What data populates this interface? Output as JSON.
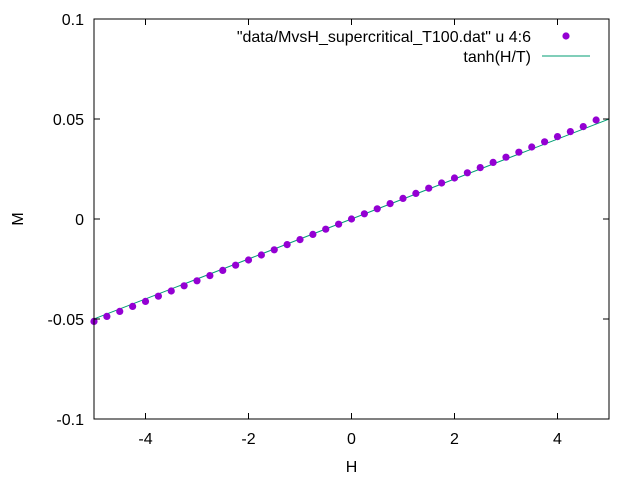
{
  "chart_data": {
    "type": "scatter",
    "title": "",
    "xlabel": "H",
    "ylabel": "M",
    "xlim": [
      -5,
      5
    ],
    "ylim": [
      -0.1,
      0.1
    ],
    "x_ticks": [
      -4,
      -2,
      0,
      2,
      4
    ],
    "x_tick_labels": [
      "-4",
      "-2",
      "0",
      "2",
      "4"
    ],
    "y_ticks": [
      -0.1,
      -0.05,
      0,
      0.05,
      0.1
    ],
    "y_tick_labels": [
      "-0.1",
      "-0.05",
      "0",
      "0.05",
      "0.1"
    ],
    "grid": false,
    "legend_position": "top-right",
    "series": [
      {
        "name": "\"data/MvsH_supercritical_T100.dat\" u 4:6",
        "kind": "points",
        "color": "#9400d3",
        "x": [
          -5.0,
          -4.75,
          -4.5,
          -4.25,
          -4.0,
          -3.75,
          -3.5,
          -3.25,
          -3.0,
          -2.75,
          -2.5,
          -2.25,
          -2.0,
          -1.75,
          -1.5,
          -1.25,
          -1.0,
          -0.75,
          -0.5,
          -0.25,
          0.0,
          0.25,
          0.5,
          0.75,
          1.0,
          1.25,
          1.5,
          1.75,
          2.0,
          2.25,
          2.5,
          2.75,
          3.0,
          3.25,
          3.5,
          3.75,
          4.0,
          4.25,
          4.5,
          4.75
        ],
        "y": [
          -0.0512,
          -0.0487,
          -0.0462,
          -0.0437,
          -0.0412,
          -0.0386,
          -0.036,
          -0.0334,
          -0.0309,
          -0.0283,
          -0.0257,
          -0.0231,
          -0.0205,
          -0.018,
          -0.0154,
          -0.0128,
          -0.0103,
          -0.0077,
          -0.0051,
          -0.0026,
          0.0,
          0.0026,
          0.0051,
          0.0077,
          0.0103,
          0.0128,
          0.0154,
          0.018,
          0.0205,
          0.0231,
          0.0257,
          0.0283,
          0.0309,
          0.0334,
          0.036,
          0.0386,
          0.0412,
          0.0437,
          0.0462,
          0.0495
        ]
      },
      {
        "name": "tanh(H/T)",
        "kind": "function",
        "color": "#009e73",
        "T": 100
      }
    ]
  }
}
